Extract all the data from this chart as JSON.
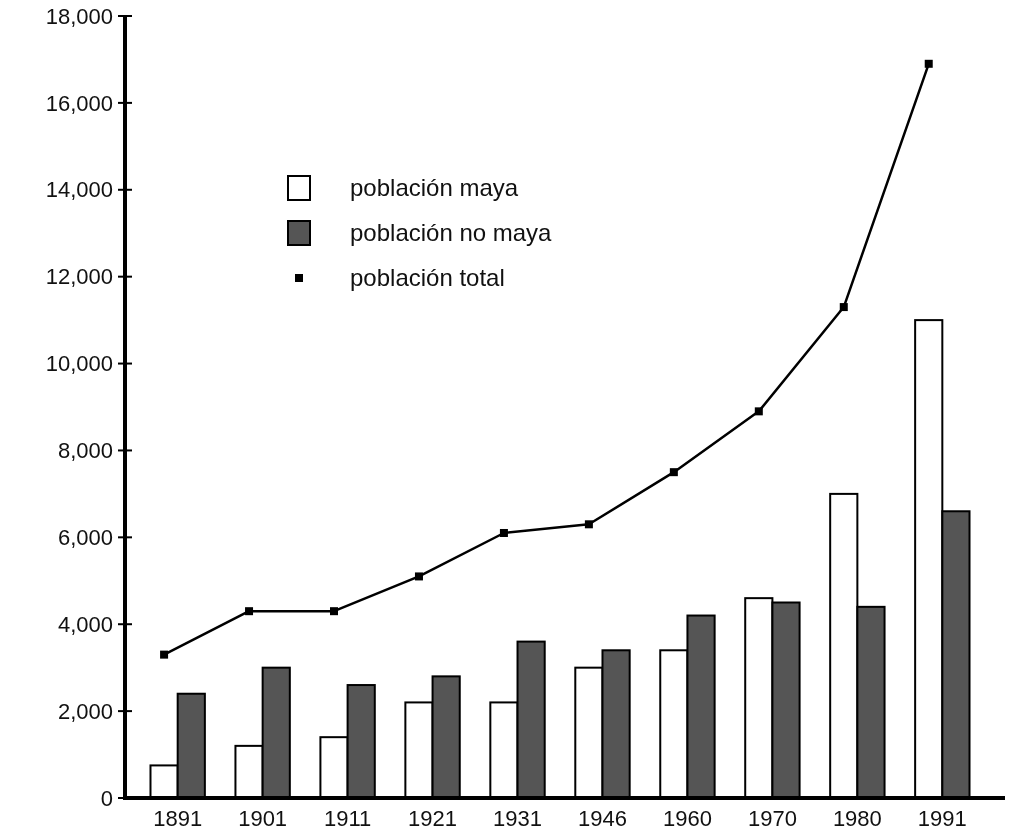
{
  "chart_data": {
    "type": "bar",
    "categories": [
      "1891",
      "1901",
      "1911",
      "1921",
      "1931",
      "1946",
      "1960",
      "1970",
      "1980",
      "1991"
    ],
    "series": [
      {
        "name": "población maya",
        "color": "#ffffff",
        "values": [
          750,
          1200,
          1400,
          2200,
          2200,
          3000,
          3400,
          4600,
          7000,
          11000
        ]
      },
      {
        "name": "población no maya",
        "color": "#555555",
        "values": [
          2400,
          3000,
          2600,
          2800,
          3600,
          3400,
          4200,
          4500,
          4400,
          6600
        ]
      },
      {
        "name": "población total",
        "type": "line",
        "color": "#000000",
        "values": [
          3300,
          4300,
          4300,
          5100,
          6100,
          6300,
          7500,
          8900,
          11300,
          16900
        ]
      }
    ],
    "ylim": [
      0,
      18000
    ],
    "yticks": [
      {
        "value": 0,
        "label": "0"
      },
      {
        "value": 2000,
        "label": "2,000"
      },
      {
        "value": 4000,
        "label": "4,000"
      },
      {
        "value": 6000,
        "label": "6,000"
      },
      {
        "value": 8000,
        "label": "8,000"
      },
      {
        "value": 10000,
        "label": "10,000"
      },
      {
        "value": 12000,
        "label": "12,000"
      },
      {
        "value": 14000,
        "label": "14,000"
      },
      {
        "value": 16000,
        "label": "16,000"
      },
      {
        "value": 18000,
        "label": "18,000"
      }
    ],
    "legend": "top left",
    "marker": "square",
    "line_style": "solid"
  }
}
